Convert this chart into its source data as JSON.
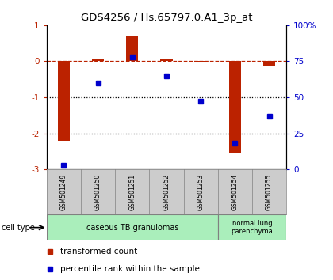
{
  "title": "GDS4256 / Hs.65797.0.A1_3p_at",
  "samples": [
    "GSM501249",
    "GSM501250",
    "GSM501251",
    "GSM501252",
    "GSM501253",
    "GSM501254",
    "GSM501255"
  ],
  "transformed_count": [
    -2.2,
    0.05,
    0.68,
    0.07,
    -0.02,
    -2.55,
    -0.12
  ],
  "percentile_rank": [
    3,
    60,
    78,
    65,
    47,
    18,
    37
  ],
  "ylim_left": [
    -3,
    1
  ],
  "ylim_right": [
    0,
    100
  ],
  "yticks_left": [
    -3,
    -2,
    -1,
    0,
    1
  ],
  "yticks_right": [
    0,
    25,
    50,
    75,
    100
  ],
  "yticklabels_right": [
    "0",
    "25",
    "50",
    "75",
    "100%"
  ],
  "bar_color": "#bb2200",
  "scatter_color": "#0000cc",
  "group1_label": "caseous TB granulomas",
  "group2_label": "normal lung\nparenchyma",
  "group1_color": "#aaeebb",
  "group2_color": "#aaeebb",
  "cell_type_label": "cell type",
  "legend_bar_label": "transformed count",
  "legend_scatter_label": "percentile rank within the sample",
  "background_color": "#ffffff",
  "sample_label_color": "#cccccc"
}
